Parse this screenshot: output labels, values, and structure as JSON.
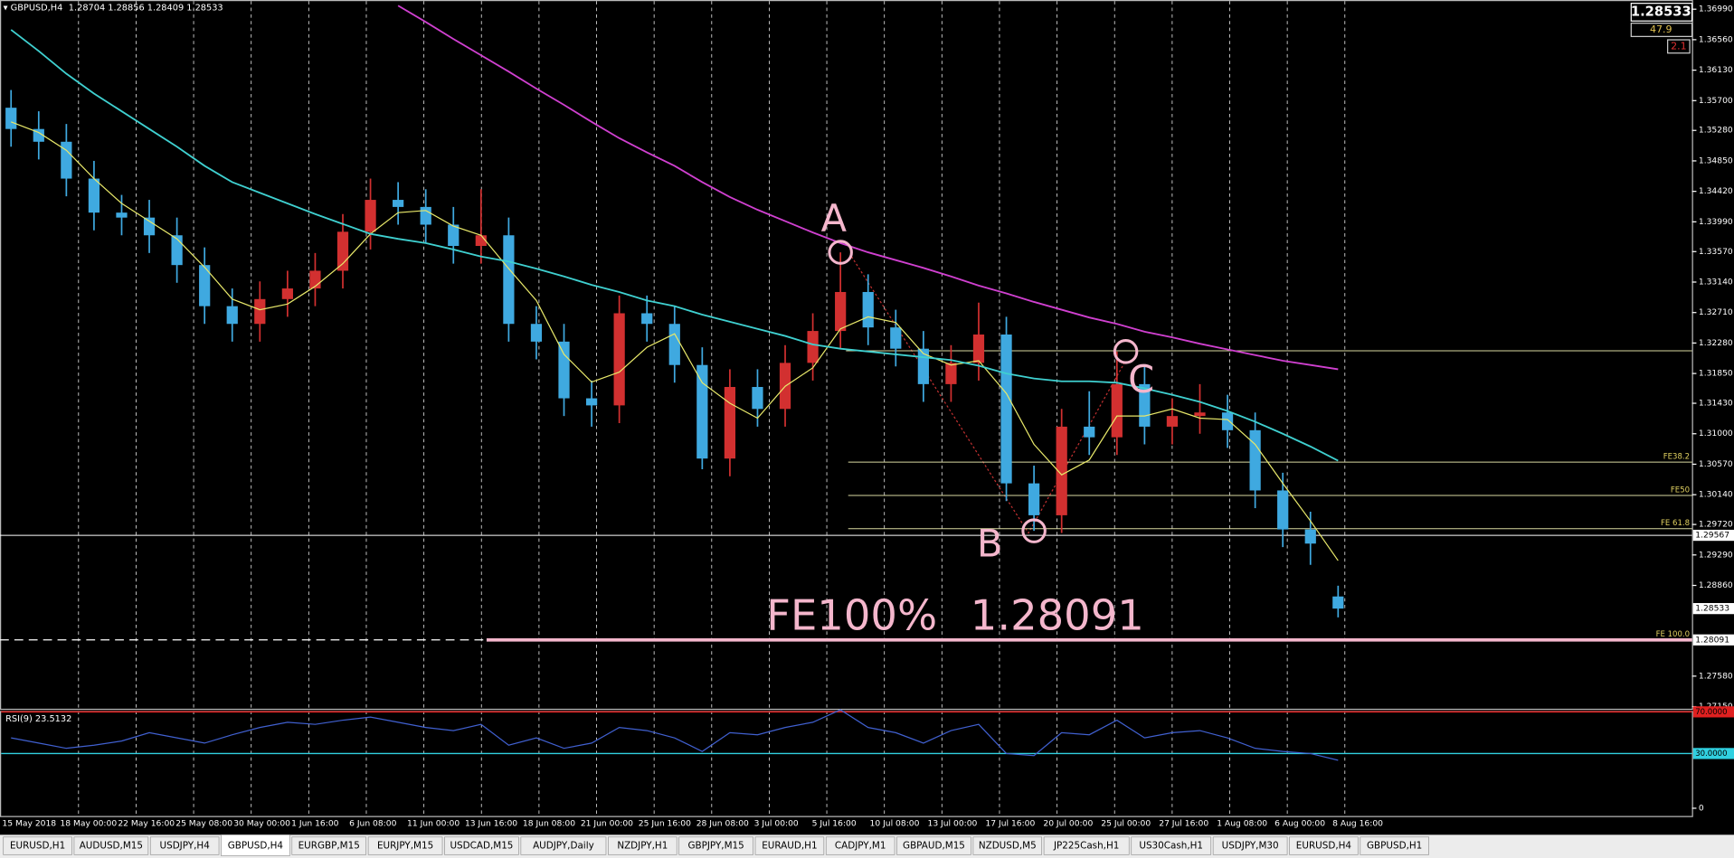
{
  "header": {
    "symbol": "GBPUSD,H4"
  },
  "info": {
    "spread": 47.9,
    "extra": 2.1
  },
  "chart": {
    "type": "candlestick",
    "ylim": [
      1.2712,
      1.3712
    ],
    "yticks": [
      {
        "value": 1.3699,
        "label": "1.36990"
      },
      {
        "value": 1.3656,
        "label": "1.36560"
      },
      {
        "value": 1.3613,
        "label": "1.36130"
      },
      {
        "value": 1.357,
        "label": "1.35700"
      },
      {
        "value": 1.3528,
        "label": "1.35280"
      },
      {
        "value": 1.3485,
        "label": "1.34850"
      },
      {
        "value": 1.3442,
        "label": "1.34420"
      },
      {
        "value": 1.3399,
        "label": "1.33990"
      },
      {
        "value": 1.3357,
        "label": "1.33570"
      },
      {
        "value": 1.3314,
        "label": "1.33140"
      },
      {
        "value": 1.3271,
        "label": "1.32710"
      },
      {
        "value": 1.3228,
        "label": "1.32280"
      },
      {
        "value": 1.3185,
        "label": "1.31850"
      },
      {
        "value": 1.3143,
        "label": "1.31430"
      },
      {
        "value": 1.31,
        "label": "1.31000"
      },
      {
        "value": 1.3057,
        "label": "1.30570"
      },
      {
        "value": 1.3014,
        "label": "1.30140"
      },
      {
        "value": 1.2972,
        "label": "1.29720"
      },
      {
        "value": 1.2929,
        "label": "1.29290"
      },
      {
        "value": 1.2886,
        "label": "1.28860"
      },
      {
        "value": 1.2758,
        "label": "1.27580"
      },
      {
        "value": 1.2715,
        "label": "1.27150"
      }
    ],
    "candles": [
      [
        1.356,
        1.3585,
        1.3505,
        1.353
      ],
      [
        1.353,
        1.3555,
        1.3487,
        1.3512
      ],
      [
        1.3512,
        1.3537,
        1.3435,
        1.346
      ],
      [
        1.346,
        1.3485,
        1.3387,
        1.3412
      ],
      [
        1.3412,
        1.3437,
        1.338,
        1.3405
      ],
      [
        1.3405,
        1.343,
        1.3355,
        1.338
      ],
      [
        1.338,
        1.3405,
        1.3313,
        1.3338
      ],
      [
        1.3338,
        1.3363,
        1.3255,
        1.328
      ],
      [
        1.328,
        1.3305,
        1.323,
        1.3255
      ],
      [
        1.3255,
        1.3315,
        1.323,
        1.329
      ],
      [
        1.329,
        1.333,
        1.3265,
        1.3305
      ],
      [
        1.3305,
        1.3355,
        1.328,
        1.333
      ],
      [
        1.333,
        1.341,
        1.3305,
        1.3385
      ],
      [
        1.3385,
        1.346,
        1.336,
        1.343
      ],
      [
        1.343,
        1.3455,
        1.3395,
        1.342
      ],
      [
        1.342,
        1.3445,
        1.337,
        1.3395
      ],
      [
        1.3395,
        1.342,
        1.334,
        1.3365
      ],
      [
        1.3365,
        1.3445,
        1.334,
        1.338
      ],
      [
        1.338,
        1.3405,
        1.323,
        1.3255
      ],
      [
        1.3255,
        1.328,
        1.3205,
        1.323
      ],
      [
        1.323,
        1.3255,
        1.3125,
        1.315
      ],
      [
        1.315,
        1.3175,
        1.311,
        1.314
      ],
      [
        1.314,
        1.3295,
        1.3115,
        1.327
      ],
      [
        1.327,
        1.3295,
        1.323,
        1.3255
      ],
      [
        1.3255,
        1.328,
        1.3172,
        1.3197
      ],
      [
        1.3197,
        1.3222,
        1.305,
        1.3065
      ],
      [
        1.3065,
        1.3191,
        1.304,
        1.3166
      ],
      [
        1.3166,
        1.3191,
        1.311,
        1.3135
      ],
      [
        1.3135,
        1.3225,
        1.311,
        1.32
      ],
      [
        1.32,
        1.327,
        1.3175,
        1.3245
      ],
      [
        1.3245,
        1.3356,
        1.322,
        1.33
      ],
      [
        1.33,
        1.3325,
        1.3225,
        1.325
      ],
      [
        1.325,
        1.3275,
        1.3195,
        1.322
      ],
      [
        1.322,
        1.3245,
        1.3145,
        1.317
      ],
      [
        1.317,
        1.3225,
        1.3145,
        1.32
      ],
      [
        1.32,
        1.3285,
        1.3175,
        1.324
      ],
      [
        1.324,
        1.3265,
        1.3005,
        1.303
      ],
      [
        1.303,
        1.3055,
        1.2963,
        1.2985
      ],
      [
        1.2985,
        1.3135,
        1.296,
        1.311
      ],
      [
        1.311,
        1.316,
        1.307,
        1.3095
      ],
      [
        1.3095,
        1.3216,
        1.307,
        1.317
      ],
      [
        1.317,
        1.3195,
        1.3085,
        1.311
      ],
      [
        1.311,
        1.315,
        1.3085,
        1.3125
      ],
      [
        1.3125,
        1.317,
        1.31,
        1.313
      ],
      [
        1.313,
        1.3155,
        1.308,
        1.3105
      ],
      [
        1.3105,
        1.313,
        1.2995,
        1.302
      ],
      [
        1.302,
        1.3045,
        1.294,
        1.2965
      ],
      [
        1.2965,
        1.299,
        1.2915,
        1.2945
      ],
      [
        1.28704,
        1.28856,
        1.28409,
        1.28533
      ]
    ],
    "lines": [
      {
        "color": "#e8e86a",
        "values": [
          1.354,
          1.3525,
          1.35,
          1.346,
          1.3425,
          1.34,
          1.3375,
          1.3335,
          1.329,
          1.3275,
          1.3283,
          1.3308,
          1.334,
          1.3382,
          1.3412,
          1.3415,
          1.3393,
          1.338,
          1.3333,
          1.3288,
          1.3212,
          1.3173,
          1.3187,
          1.3222,
          1.3241,
          1.3172,
          1.3143,
          1.3122,
          1.3167,
          1.3193,
          1.3248,
          1.3265,
          1.3257,
          1.3213,
          1.3197,
          1.3203,
          1.3157,
          1.3085,
          1.3042,
          1.3063,
          1.3125,
          1.3125,
          1.3135,
          1.3122,
          1.312,
          1.3085,
          1.303,
          1.2977,
          1.2921
        ]
      },
      {
        "color": "#3fd0d0",
        "values": [
          1.367,
          1.364,
          1.3608,
          1.358,
          1.3555,
          1.353,
          1.3505,
          1.3478,
          1.3455,
          1.344,
          1.3425,
          1.341,
          1.3396,
          1.3382,
          1.3375,
          1.3369,
          1.336,
          1.335,
          1.3343,
          1.3333,
          1.3322,
          1.331,
          1.33,
          1.3288,
          1.328,
          1.3268,
          1.3258,
          1.3248,
          1.3238,
          1.3226,
          1.322,
          1.3216,
          1.3212,
          1.3208,
          1.3204,
          1.3196,
          1.3185,
          1.3178,
          1.3174,
          1.3174,
          1.3172,
          1.3164,
          1.3155,
          1.3145,
          1.3132,
          1.3117,
          1.31,
          1.3082,
          1.3062
        ]
      },
      {
        "color": "#d040d0",
        "values": [
          null,
          null,
          null,
          null,
          null,
          null,
          null,
          null,
          null,
          null,
          null,
          null,
          null,
          null,
          1.3704,
          1.3681,
          1.3657,
          1.3634,
          1.3611,
          1.3587,
          1.3564,
          1.354,
          1.3517,
          1.3497,
          1.3478,
          1.3455,
          1.3434,
          1.3416,
          1.34,
          1.3384,
          1.3369,
          1.3356,
          1.3345,
          1.3334,
          1.3322,
          1.3309,
          1.3298,
          1.3286,
          1.3275,
          1.3264,
          1.3255,
          1.3244,
          1.3236,
          1.3227,
          1.3219,
          1.3211,
          1.3203,
          1.3197,
          1.3191
        ]
      }
    ],
    "hlines": [
      {
        "value": 1.3217
      },
      {
        "value": 1.29567
      }
    ],
    "fe_levels": [
      {
        "label": "FE38.2",
        "value": 1.306
      },
      {
        "label": "FE50",
        "value": 1.3013
      },
      {
        "label": "FE 61.8",
        "value": 1.2966
      },
      {
        "label": "FE 100.0",
        "value": 1.28091
      }
    ],
    "annotations": {
      "a": "A",
      "b": "B",
      "c": "C",
      "fe": "FE100%"
    }
  },
  "rsi": {
    "title": "RSI(9)",
    "ylim": [
      -30,
      73
    ],
    "yticks": [
      {
        "value": 70,
        "label": "70.0000"
      },
      {
        "value": 30,
        "label": "30.0000"
      },
      0
    ],
    "values": [
      45,
      40,
      35,
      38,
      42,
      50,
      45,
      40,
      48,
      55,
      60,
      58,
      62,
      65,
      60,
      55,
      52,
      58,
      38,
      45,
      35,
      40,
      55,
      52,
      45,
      32,
      50,
      48,
      55,
      60,
      72,
      55,
      50,
      40,
      52,
      58,
      30,
      28,
      50,
      48,
      62,
      45,
      50,
      52,
      45,
      35,
      32,
      30,
      23.5132
    ]
  },
  "time_axis": [
    "15 May 2018",
    "18 May 00:00",
    "22 May 16:00",
    "25 May 08:00",
    "30 May 00:00",
    "1 Jun 16:00",
    "6 Jun 08:00",
    "11 Jun 00:00",
    "13 Jun 16:00",
    "18 Jun 08:00",
    "21 Jun 00:00",
    "25 Jun 16:00",
    "28 Jun 08:00",
    "3 Jul 00:00",
    "5 Jul 16:00",
    "10 Jul 08:00",
    "13 Jul 00:00",
    "17 Jul 16:00",
    "20 Jul 00:00",
    "25 Jul 00:00",
    "27 Jul 16:00",
    "1 Aug 08:00",
    "6 Aug 00:00",
    "8 Aug 16:00"
  ],
  "tabs": [
    "EURUSD,H1",
    "AUDUSD,M15",
    "USDJPY,H4",
    "GBPUSD,H4",
    "EURGBP,M15",
    "EURJPY,M15",
    "USDCAD,M15",
    "AUDJPY,Daily",
    "NZDJPY,H1",
    "GBPJPY,M15",
    "EURAUD,H1",
    "CADJPY,M1",
    "GBPAUD,M15",
    "NZDUSD,M5",
    "JP225Cash,H1",
    "US30Cash,H1",
    "USDJPY,M30",
    "EURUSD,H4",
    "GBPUSD,H1"
  ],
  "active_tab": 3
}
